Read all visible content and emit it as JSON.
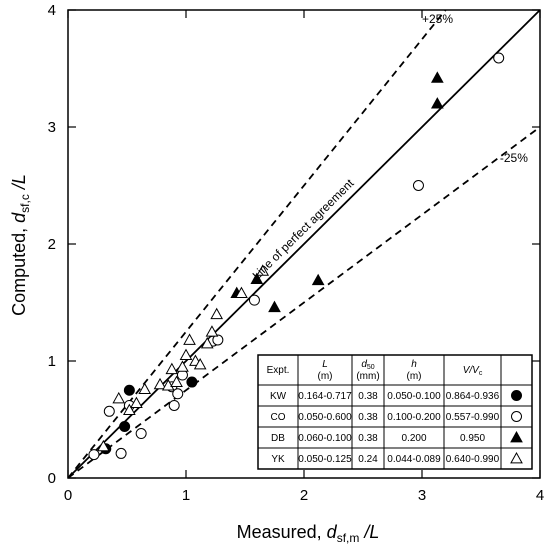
{
  "chart_data": {
    "type": "scatter",
    "title": "",
    "xlabel": {
      "main": "Measured, ",
      "var": "d",
      "sub": "sf,m",
      "tail": " /L"
    },
    "ylabel": {
      "main": "Computed, ",
      "var": "d",
      "sub": "sf,c",
      "tail": " /L"
    },
    "xlim": [
      0,
      4
    ],
    "ylim": [
      0,
      4
    ],
    "xticks": [
      "0",
      "1",
      "2",
      "3",
      "4"
    ],
    "yticks": [
      "0",
      "1",
      "2",
      "3",
      "4"
    ],
    "grid": false,
    "reference_lines": [
      {
        "name": "Line of perfect agreement",
        "slope": 1.0,
        "style": "solid"
      },
      {
        "name": "+25%",
        "slope": 1.25,
        "style": "dashed"
      },
      {
        "name": "-25%",
        "slope": 0.75,
        "style": "dashed"
      }
    ],
    "series": [
      {
        "name": "KW",
        "marker": "filled-circle",
        "points": [
          [
            0.32,
            0.25
          ],
          [
            0.48,
            0.44
          ],
          [
            0.52,
            0.75
          ],
          [
            1.05,
            0.82
          ]
        ]
      },
      {
        "name": "CO",
        "marker": "open-circle",
        "points": [
          [
            0.22,
            0.2
          ],
          [
            0.35,
            0.57
          ],
          [
            0.45,
            0.21
          ],
          [
            0.52,
            0.62
          ],
          [
            0.62,
            0.38
          ],
          [
            0.88,
            0.78
          ],
          [
            0.9,
            0.62
          ],
          [
            0.93,
            0.72
          ],
          [
            0.97,
            0.88
          ],
          [
            1.23,
            1.17
          ],
          [
            1.27,
            1.18
          ],
          [
            1.58,
            1.52
          ],
          [
            2.97,
            2.5
          ],
          [
            3.65,
            3.59
          ]
        ]
      },
      {
        "name": "DB",
        "marker": "filled-triangle",
        "points": [
          [
            1.43,
            1.58
          ],
          [
            1.6,
            1.7
          ],
          [
            1.75,
            1.46
          ],
          [
            2.12,
            1.69
          ],
          [
            3.13,
            3.2
          ],
          [
            3.13,
            3.42
          ]
        ]
      },
      {
        "name": "YK",
        "marker": "open-triangle",
        "points": [
          [
            0.3,
            0.27
          ],
          [
            0.43,
            0.68
          ],
          [
            0.52,
            0.58
          ],
          [
            0.58,
            0.64
          ],
          [
            0.65,
            0.76
          ],
          [
            0.78,
            0.8
          ],
          [
            0.85,
            0.79
          ],
          [
            0.88,
            0.93
          ],
          [
            0.92,
            0.82
          ],
          [
            0.97,
            0.95
          ],
          [
            1.0,
            1.05
          ],
          [
            1.03,
            1.18
          ],
          [
            1.08,
            1.0
          ],
          [
            1.12,
            0.97
          ],
          [
            1.18,
            1.15
          ],
          [
            1.22,
            1.25
          ],
          [
            1.26,
            1.4
          ],
          [
            1.47,
            1.58
          ],
          [
            1.65,
            1.77
          ]
        ]
      }
    ],
    "legend_table": {
      "position": "bottom-right",
      "headers": [
        {
          "main": "Expt.",
          "sub": "",
          "unit": ""
        },
        {
          "main": "L",
          "sub": "",
          "unit": "(m)"
        },
        {
          "main": "d",
          "sub": "50",
          "unit": "(mm)"
        },
        {
          "main": "h",
          "sub": "",
          "unit": "(m)"
        },
        {
          "main": "V/V",
          "sub": "c",
          "unit": ""
        }
      ],
      "rows": [
        {
          "expt": "KW",
          "L": "0.164-0.717",
          "d50": "0.38",
          "h": "0.050-0.100",
          "VVc": "0.864-0.936",
          "marker": "filled-circle"
        },
        {
          "expt": "CO",
          "L": "0.050-0.600",
          "d50": "0.38",
          "h": "0.100-0.200",
          "VVc": "0.557-0.990",
          "marker": "open-circle"
        },
        {
          "expt": "DB",
          "L": "0.060-0.100",
          "d50": "0.38",
          "h": "0.200",
          "VVc": "0.950",
          "marker": "filled-triangle"
        },
        {
          "expt": "YK",
          "L": "0.050-0.125",
          "d50": "0.24",
          "h": "0.044-0.089",
          "VVc": "0.640-0.990",
          "marker": "open-triangle"
        }
      ]
    }
  }
}
